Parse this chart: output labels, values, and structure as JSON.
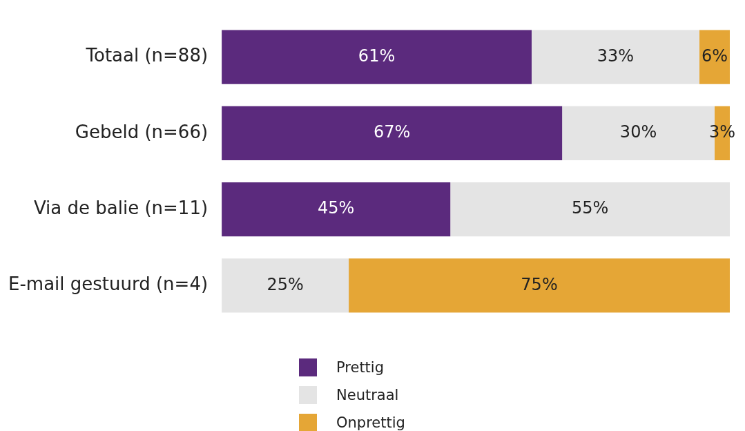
{
  "chart_data": {
    "type": "bar",
    "orientation": "horizontal",
    "stacked": true,
    "categories": [
      "Totaal (n=88)",
      "Gebeld (n=66)",
      "Via de balie (n=11)",
      "E-mail gestuurd (n=4)"
    ],
    "series": [
      {
        "name": "Prettig",
        "color": "#5b2a7d",
        "values": [
          61,
          67,
          45,
          0
        ],
        "value_labels": [
          "61%",
          "67%",
          "45%",
          null
        ]
      },
      {
        "name": "Neutraal",
        "color": "#e4e4e4",
        "values": [
          33,
          30,
          55,
          25
        ],
        "value_labels": [
          "33%",
          "30%",
          "55%",
          "25%"
        ]
      },
      {
        "name": "Onprettig",
        "color": "#e5a636",
        "values": [
          6,
          3,
          0,
          75
        ],
        "value_labels": [
          "6%",
          "3%",
          null,
          "75%"
        ]
      }
    ],
    "legend": "bottom"
  }
}
